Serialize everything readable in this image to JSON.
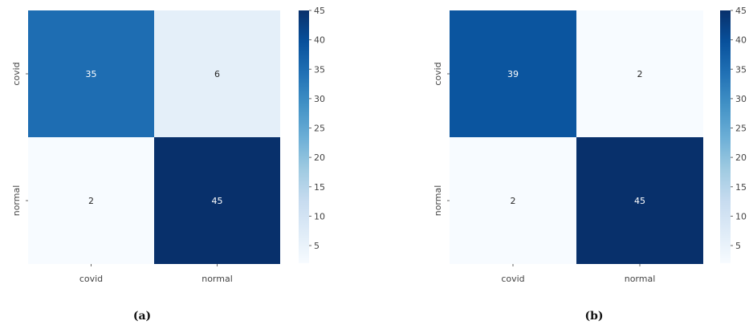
{
  "chart_data": [
    {
      "type": "heatmap",
      "caption": "(a)",
      "x_categories": [
        "covid",
        "normal"
      ],
      "y_categories": [
        "covid",
        "normal"
      ],
      "values": [
        [
          35,
          6
        ],
        [
          2,
          45
        ]
      ],
      "colorbar": {
        "min": 2,
        "max": 45,
        "ticks": [
          "5",
          "10",
          "15",
          "20",
          "25",
          "30",
          "35",
          "40",
          "45"
        ]
      },
      "colormap": "Blues"
    },
    {
      "type": "heatmap",
      "caption": "(b)",
      "x_categories": [
        "covid",
        "normal"
      ],
      "y_categories": [
        "covid",
        "normal"
      ],
      "values": [
        [
          39,
          2
        ],
        [
          2,
          45
        ]
      ],
      "colorbar": {
        "min": 2,
        "max": 45,
        "ticks": [
          "5",
          "10",
          "15",
          "20",
          "25",
          "30",
          "35",
          "40",
          "45"
        ]
      },
      "colormap": "Blues"
    }
  ]
}
